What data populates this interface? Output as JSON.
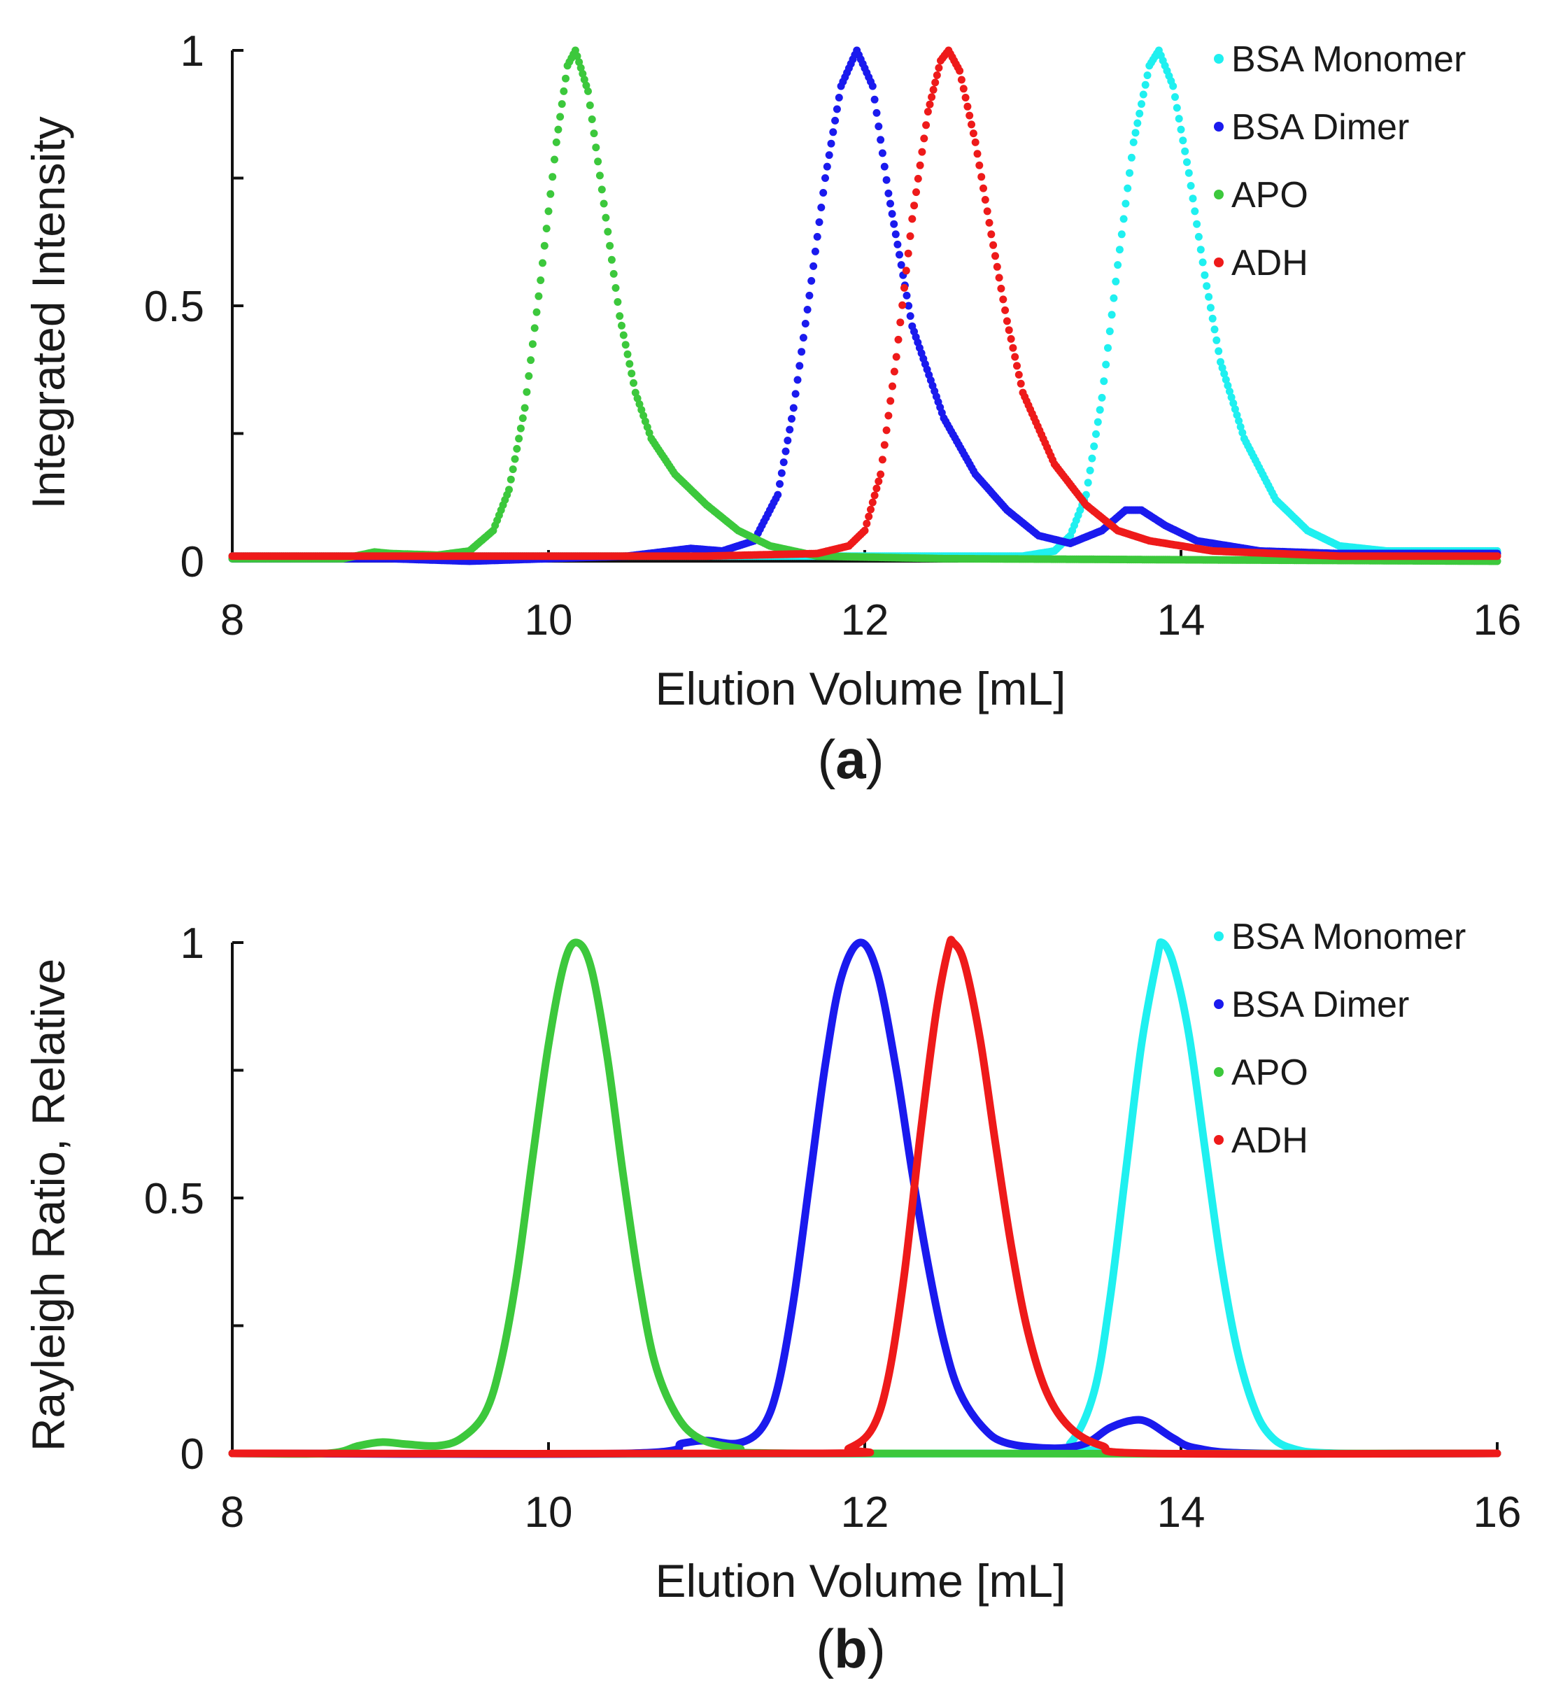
{
  "chart_data": [
    {
      "type": "scatter",
      "panel_label": {
        "open": "(",
        "letter": "a",
        "close": ")"
      },
      "xlabel": "Elution Volume [mL]",
      "ylabel": "Integrated Intensity",
      "xlim": [
        8,
        16
      ],
      "ylim": [
        0,
        1
      ],
      "xticks": [
        "8",
        "10",
        "12",
        "14",
        "16"
      ],
      "yticks": [
        "0",
        "0.5",
        "1"
      ],
      "legend_position": "top-right",
      "series": [
        {
          "name": "BSA Monomer",
          "color": "#1ff0f0",
          "points": [
            [
              8.0,
              0.01
            ],
            [
              13.0,
              0.01
            ],
            [
              13.2,
              0.02
            ],
            [
              13.3,
              0.05
            ],
            [
              13.4,
              0.13
            ],
            [
              13.5,
              0.32
            ],
            [
              13.6,
              0.58
            ],
            [
              13.7,
              0.82
            ],
            [
              13.8,
              0.97
            ],
            [
              13.86,
              1.0
            ],
            [
              13.95,
              0.93
            ],
            [
              14.05,
              0.76
            ],
            [
              14.15,
              0.56
            ],
            [
              14.25,
              0.39
            ],
            [
              14.4,
              0.24
            ],
            [
              14.6,
              0.12
            ],
            [
              14.8,
              0.06
            ],
            [
              15.0,
              0.03
            ],
            [
              15.3,
              0.02
            ],
            [
              16.0,
              0.02
            ]
          ]
        },
        {
          "name": "BSA Dimer",
          "color": "#1a1aee",
          "points": [
            [
              8.0,
              0.005
            ],
            [
              9.0,
              0.005
            ],
            [
              9.5,
              0.0
            ],
            [
              10.5,
              0.01
            ],
            [
              10.9,
              0.025
            ],
            [
              11.1,
              0.02
            ],
            [
              11.3,
              0.04
            ],
            [
              11.45,
              0.13
            ],
            [
              11.55,
              0.3
            ],
            [
              11.65,
              0.52
            ],
            [
              11.75,
              0.75
            ],
            [
              11.85,
              0.93
            ],
            [
              11.95,
              1.0
            ],
            [
              12.05,
              0.93
            ],
            [
              12.15,
              0.72
            ],
            [
              12.3,
              0.46
            ],
            [
              12.5,
              0.28
            ],
            [
              12.7,
              0.17
            ],
            [
              12.9,
              0.1
            ],
            [
              13.1,
              0.05
            ],
            [
              13.3,
              0.035
            ],
            [
              13.5,
              0.06
            ],
            [
              13.65,
              0.1
            ],
            [
              13.75,
              0.1
            ],
            [
              13.9,
              0.07
            ],
            [
              14.1,
              0.04
            ],
            [
              14.5,
              0.02
            ],
            [
              15.0,
              0.015
            ],
            [
              16.0,
              0.015
            ]
          ]
        },
        {
          "name": "APO",
          "color": "#3cc83c",
          "points": [
            [
              8.0,
              0.005
            ],
            [
              8.7,
              0.005
            ],
            [
              8.9,
              0.018
            ],
            [
              9.0,
              0.015
            ],
            [
              9.3,
              0.012
            ],
            [
              9.5,
              0.02
            ],
            [
              9.65,
              0.06
            ],
            [
              9.75,
              0.14
            ],
            [
              9.85,
              0.3
            ],
            [
              9.95,
              0.55
            ],
            [
              10.05,
              0.82
            ],
            [
              10.12,
              0.97
            ],
            [
              10.17,
              1.0
            ],
            [
              10.25,
              0.92
            ],
            [
              10.35,
              0.7
            ],
            [
              10.45,
              0.48
            ],
            [
              10.55,
              0.33
            ],
            [
              10.65,
              0.24
            ],
            [
              10.8,
              0.17
            ],
            [
              11.0,
              0.11
            ],
            [
              11.2,
              0.06
            ],
            [
              11.4,
              0.03
            ],
            [
              11.7,
              0.01
            ],
            [
              12.5,
              0.005
            ],
            [
              16.0,
              0.0
            ]
          ]
        },
        {
          "name": "ADH",
          "color": "#ee1a1a",
          "points": [
            [
              8.0,
              0.01
            ],
            [
              11.0,
              0.01
            ],
            [
              11.7,
              0.015
            ],
            [
              11.9,
              0.03
            ],
            [
              12.0,
              0.06
            ],
            [
              12.1,
              0.17
            ],
            [
              12.2,
              0.4
            ],
            [
              12.3,
              0.67
            ],
            [
              12.4,
              0.88
            ],
            [
              12.48,
              0.98
            ],
            [
              12.53,
              1.0
            ],
            [
              12.6,
              0.96
            ],
            [
              12.7,
              0.82
            ],
            [
              12.8,
              0.64
            ],
            [
              12.9,
              0.47
            ],
            [
              13.0,
              0.33
            ],
            [
              13.2,
              0.19
            ],
            [
              13.4,
              0.11
            ],
            [
              13.6,
              0.06
            ],
            [
              13.8,
              0.04
            ],
            [
              14.2,
              0.02
            ],
            [
              15.0,
              0.01
            ],
            [
              16.0,
              0.01
            ]
          ]
        }
      ]
    },
    {
      "type": "line",
      "panel_label": {
        "open": "(",
        "letter": "b",
        "close": ")"
      },
      "xlabel": "Elution Volume [mL]",
      "ylabel": "Rayleigh Ratio, Relative",
      "xlim": [
        8,
        16
      ],
      "ylim": [
        0,
        1
      ],
      "xticks": [
        "8",
        "10",
        "12",
        "14",
        "16"
      ],
      "yticks": [
        "0",
        "0.5",
        "1"
      ],
      "legend_position": "top-right",
      "series": [
        {
          "name": "BSA Monomer",
          "color": "#1ff0f0",
          "points": [
            [
              8.0,
              0.0
            ],
            [
              13.1,
              0.0
            ],
            [
              13.3,
              0.02
            ],
            [
              13.45,
              0.12
            ],
            [
              13.55,
              0.3
            ],
            [
              13.65,
              0.55
            ],
            [
              13.75,
              0.8
            ],
            [
              13.85,
              0.97
            ],
            [
              13.88,
              1.0
            ],
            [
              13.95,
              0.96
            ],
            [
              14.05,
              0.82
            ],
            [
              14.15,
              0.6
            ],
            [
              14.25,
              0.38
            ],
            [
              14.35,
              0.21
            ],
            [
              14.45,
              0.1
            ],
            [
              14.55,
              0.04
            ],
            [
              14.7,
              0.01
            ],
            [
              15.0,
              0.0
            ],
            [
              16.0,
              0.0
            ]
          ]
        },
        {
          "name": "BSA Dimer",
          "color": "#1a1aee",
          "points": [
            [
              8.0,
              0.0
            ],
            [
              10.5,
              0.0
            ],
            [
              10.85,
              0.02
            ],
            [
              11.0,
              0.025
            ],
            [
              11.2,
              0.02
            ],
            [
              11.35,
              0.05
            ],
            [
              11.45,
              0.13
            ],
            [
              11.55,
              0.3
            ],
            [
              11.65,
              0.53
            ],
            [
              11.75,
              0.76
            ],
            [
              11.85,
              0.93
            ],
            [
              11.97,
              1.0
            ],
            [
              12.08,
              0.94
            ],
            [
              12.2,
              0.75
            ],
            [
              12.3,
              0.55
            ],
            [
              12.4,
              0.37
            ],
            [
              12.5,
              0.22
            ],
            [
              12.6,
              0.12
            ],
            [
              12.75,
              0.05
            ],
            [
              12.9,
              0.02
            ],
            [
              13.2,
              0.01
            ],
            [
              13.4,
              0.02
            ],
            [
              13.55,
              0.05
            ],
            [
              13.7,
              0.065
            ],
            [
              13.8,
              0.06
            ],
            [
              13.95,
              0.03
            ],
            [
              14.1,
              0.01
            ],
            [
              14.5,
              0.0
            ],
            [
              16.0,
              0.0
            ]
          ]
        },
        {
          "name": "APO",
          "color": "#3cc83c",
          "points": [
            [
              8.0,
              0.0
            ],
            [
              8.6,
              0.0
            ],
            [
              8.8,
              0.015
            ],
            [
              8.95,
              0.022
            ],
            [
              9.1,
              0.018
            ],
            [
              9.3,
              0.015
            ],
            [
              9.45,
              0.03
            ],
            [
              9.6,
              0.08
            ],
            [
              9.7,
              0.18
            ],
            [
              9.8,
              0.35
            ],
            [
              9.9,
              0.58
            ],
            [
              10.0,
              0.8
            ],
            [
              10.1,
              0.96
            ],
            [
              10.18,
              1.0
            ],
            [
              10.27,
              0.95
            ],
            [
              10.37,
              0.78
            ],
            [
              10.47,
              0.55
            ],
            [
              10.57,
              0.34
            ],
            [
              10.67,
              0.18
            ],
            [
              10.8,
              0.08
            ],
            [
              10.95,
              0.03
            ],
            [
              11.2,
              0.01
            ],
            [
              11.6,
              0.0
            ],
            [
              16.0,
              0.0
            ]
          ]
        },
        {
          "name": "ADH",
          "color": "#ee1a1a",
          "points": [
            [
              8.0,
              0.0
            ],
            [
              11.7,
              0.0
            ],
            [
              11.9,
              0.01
            ],
            [
              12.05,
              0.05
            ],
            [
              12.15,
              0.15
            ],
            [
              12.25,
              0.35
            ],
            [
              12.35,
              0.62
            ],
            [
              12.45,
              0.86
            ],
            [
              12.53,
              0.99
            ],
            [
              12.56,
              1.0
            ],
            [
              12.63,
              0.96
            ],
            [
              12.73,
              0.81
            ],
            [
              12.83,
              0.6
            ],
            [
              12.93,
              0.4
            ],
            [
              13.03,
              0.24
            ],
            [
              13.15,
              0.12
            ],
            [
              13.3,
              0.05
            ],
            [
              13.5,
              0.015
            ],
            [
              13.8,
              0.0
            ],
            [
              16.0,
              0.0
            ]
          ]
        }
      ]
    }
  ]
}
